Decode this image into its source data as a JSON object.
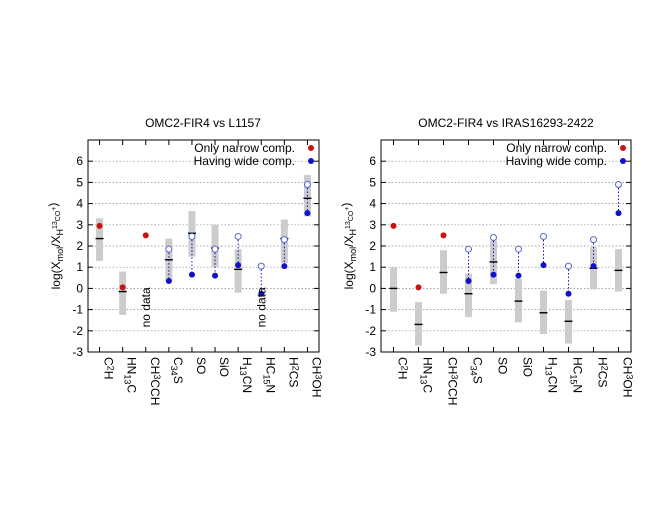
{
  "chart_data": [
    {
      "type": "range-box",
      "title": "OMC2-FIR4 vs L1157",
      "ylabel": "log(X_mol/X_H13CO+)",
      "ylim": [
        -3,
        7
      ],
      "yticks": [
        "-3",
        "-2",
        "-1",
        "0",
        "1",
        "2",
        "3",
        "4",
        "5",
        "6"
      ],
      "legend": {
        "position": "top-right",
        "narrow": "Only narrow comp.",
        "wide": "Having wide comp."
      },
      "categories": [
        "C2H",
        "HN13C",
        "CH3CCH",
        "C34S",
        "SO",
        "SiO",
        "H13CN",
        "HC15N",
        "H2CS",
        "CH3OH"
      ],
      "category_labels": [
        {
          "base": "C",
          "sub": "2",
          "rest": "H"
        },
        {
          "base": "HN",
          "sup": "13",
          "rest": "C"
        },
        {
          "base": "CH",
          "sub": "3",
          "rest": "CCH"
        },
        {
          "base": "C",
          "sup": "34",
          "rest": "S"
        },
        {
          "base": "SO"
        },
        {
          "base": "SiO"
        },
        {
          "base": "H",
          "sup": "13",
          "rest": "CN"
        },
        {
          "base": "HC",
          "sup": "15",
          "rest": "N"
        },
        {
          "base": "H",
          "sub": "2",
          "rest": "CS"
        },
        {
          "base": "CH",
          "sub": "3",
          "rest": "OH"
        }
      ],
      "ranges": [
        [
          1.3,
          3.3
        ],
        [
          -1.25,
          0.8
        ],
        null,
        [
          0.3,
          2.35
        ],
        [
          1.5,
          3.65
        ],
        [
          1.0,
          3.0
        ],
        [
          -0.2,
          1.85
        ],
        null,
        [
          1.2,
          3.25
        ],
        [
          3.4,
          5.35
        ]
      ],
      "medians": [
        2.35,
        -0.15,
        null,
        1.35,
        2.6,
        1.9,
        0.9,
        null,
        2.35,
        4.25
      ],
      "narrow_points": [
        2.95,
        0.05,
        2.5,
        null,
        null,
        null,
        null,
        null,
        null,
        null
      ],
      "wide_points": [
        null,
        null,
        null,
        0.35,
        0.65,
        0.6,
        1.1,
        -0.25,
        1.05,
        3.55
      ],
      "wide_upper_open": [
        null,
        null,
        null,
        1.85,
        2.45,
        1.85,
        2.45,
        1.05,
        2.3,
        4.9
      ],
      "no_data_labels": [
        null,
        null,
        "no data",
        null,
        null,
        null,
        null,
        "no data",
        null,
        null
      ]
    },
    {
      "type": "range-box",
      "title": "OMC2-FIR4 vs IRAS16293-2422",
      "ylabel": "log(X_mol/X_H13CO+)",
      "ylim": [
        -3,
        7
      ],
      "yticks": [
        "-3",
        "-2",
        "-1",
        "0",
        "1",
        "2",
        "3",
        "4",
        "5",
        "6"
      ],
      "legend": {
        "position": "top-right",
        "narrow": "Only narrow comp.",
        "wide": "Having wide comp."
      },
      "categories": [
        "C2H",
        "HN13C",
        "CH3CCH",
        "C34S",
        "SO",
        "SiO",
        "H13CN",
        "HC15N",
        "H2CS",
        "CH3OH"
      ],
      "category_labels": [
        {
          "base": "C",
          "sub": "2",
          "rest": "H"
        },
        {
          "base": "HN",
          "sup": "13",
          "rest": "C"
        },
        {
          "base": "CH",
          "sub": "3",
          "rest": "CCH"
        },
        {
          "base": "C",
          "sup": "34",
          "rest": "S"
        },
        {
          "base": "SO"
        },
        {
          "base": "SiO"
        },
        {
          "base": "H",
          "sup": "13",
          "rest": "CN"
        },
        {
          "base": "HC",
          "sup": "15",
          "rest": "N"
        },
        {
          "base": "H",
          "sub": "2",
          "rest": "CS"
        },
        {
          "base": "CH",
          "sub": "3",
          "rest": "OH"
        }
      ],
      "ranges": [
        [
          -1.1,
          1.0
        ],
        [
          -2.7,
          -0.65
        ],
        [
          -0.25,
          1.8
        ],
        [
          -1.35,
          0.7
        ],
        [
          0.2,
          2.25
        ],
        [
          -1.6,
          0.45
        ],
        [
          -2.15,
          -0.1
        ],
        [
          -2.6,
          -0.55
        ],
        [
          -0.05,
          1.95
        ],
        [
          -0.15,
          1.85
        ]
      ],
      "medians": [
        0.0,
        -1.7,
        0.75,
        -0.25,
        1.25,
        -0.6,
        -1.15,
        -1.55,
        0.95,
        0.85
      ],
      "narrow_points": [
        2.95,
        0.05,
        2.5,
        null,
        null,
        null,
        null,
        null,
        null,
        null
      ],
      "wide_points": [
        null,
        null,
        null,
        0.35,
        0.65,
        0.6,
        1.1,
        -0.25,
        1.05,
        3.55
      ],
      "wide_upper_open": [
        null,
        null,
        null,
        1.85,
        2.4,
        1.85,
        2.45,
        1.05,
        2.3,
        4.9
      ],
      "no_data_labels": [
        null,
        null,
        null,
        null,
        null,
        null,
        null,
        null,
        null,
        null
      ]
    }
  ],
  "colors": {
    "narrow": "#cc1111",
    "wide": "#1111cc",
    "open": "#5566cc",
    "box": "#cccccc",
    "median": "#000000",
    "grid": "#888888"
  }
}
